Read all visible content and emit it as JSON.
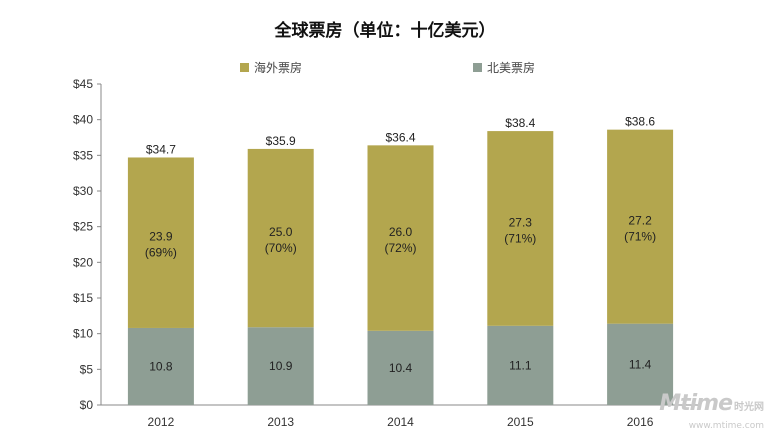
{
  "chart_data": {
    "type": "bar",
    "stacked": true,
    "title": "全球票房（单位：十亿美元）",
    "categories": [
      "2012",
      "2013",
      "2014",
      "2015",
      "2016"
    ],
    "series": [
      {
        "name": "北美票房",
        "color": "#8e9e94",
        "values": [
          10.8,
          10.9,
          10.4,
          11.1,
          11.4
        ],
        "labels": [
          "10.8",
          "10.9",
          "10.4",
          "11.1",
          "11.4"
        ]
      },
      {
        "name": "海外票房",
        "color": "#b3a64e",
        "values": [
          23.9,
          25.0,
          26.0,
          27.3,
          27.2
        ],
        "labels": [
          "23.9",
          "25.0",
          "26.0",
          "27.3",
          "27.2"
        ],
        "share_labels": [
          "(69%)",
          "(70%)",
          "(72%)",
          "(71%)",
          "(71%)"
        ]
      }
    ],
    "totals": [
      34.7,
      35.9,
      36.4,
      38.4,
      38.6
    ],
    "total_labels": [
      "$34.7",
      "$35.9",
      "$36.4",
      "$38.4",
      "$38.6"
    ],
    "ylim": [
      0,
      45
    ],
    "yticks": [
      0,
      5,
      10,
      15,
      20,
      25,
      30,
      35,
      40,
      45
    ],
    "ytick_labels": [
      "$0",
      "$5",
      "$10",
      "$15",
      "$20",
      "$25",
      "$30",
      "$35",
      "$40",
      "$45"
    ],
    "xlabel": "",
    "ylabel": "",
    "grid": false,
    "legend": {
      "position": "top",
      "order": [
        "海外票房",
        "北美票房"
      ]
    }
  },
  "watermark": {
    "logo": "Mtime",
    "brand": "时光网",
    "url": "www.mtime.com"
  }
}
